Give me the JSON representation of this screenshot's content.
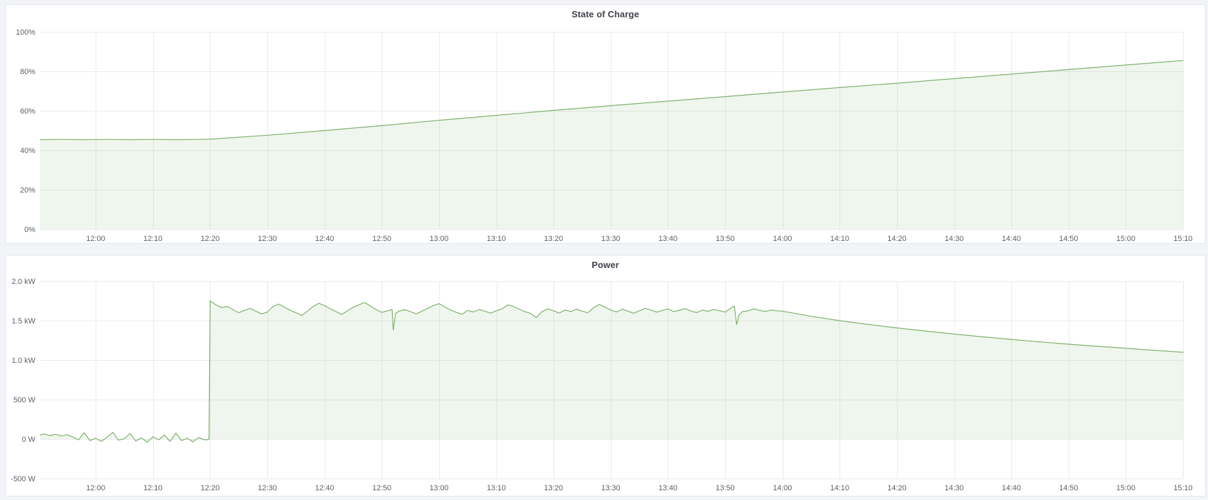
{
  "app": {
    "background": "#f2f4f8",
    "panel_background": "#ffffff",
    "panel_border": "#dfe4ec",
    "title_color": "#3f434b",
    "tick_color": "#5c6066",
    "grid_color": "#ebebeb",
    "accent_green": "#7eb26d"
  },
  "chart_data": [
    {
      "type": "area",
      "title": "State of Charge",
      "xlabel": "",
      "ylabel": "",
      "unit": "percent",
      "line_color": "#7eb26d",
      "fill_color": "rgba(126,178,109,0.12)",
      "grid": true,
      "legend": false,
      "x_range": [
        710.3,
        910
      ],
      "y_range": [
        0,
        100
      ],
      "fill_baseline": 0,
      "y_ticks": [
        [
          0,
          "0%"
        ],
        [
          20,
          "20%"
        ],
        [
          40,
          "40%"
        ],
        [
          60,
          "60%"
        ],
        [
          80,
          "80%"
        ],
        [
          100,
          "100%"
        ]
      ],
      "x_ticks": [
        [
          720,
          "12:00"
        ],
        [
          730,
          "12:10"
        ],
        [
          740,
          "12:20"
        ],
        [
          750,
          "12:30"
        ],
        [
          760,
          "12:40"
        ],
        [
          770,
          "12:50"
        ],
        [
          780,
          "13:00"
        ],
        [
          790,
          "13:10"
        ],
        [
          800,
          "13:20"
        ],
        [
          810,
          "13:30"
        ],
        [
          820,
          "13:40"
        ],
        [
          830,
          "13:50"
        ],
        [
          840,
          "14:00"
        ],
        [
          850,
          "14:10"
        ],
        [
          860,
          "14:20"
        ],
        [
          870,
          "14:30"
        ],
        [
          880,
          "14:40"
        ],
        [
          890,
          "14:50"
        ],
        [
          900,
          "15:00"
        ],
        [
          910,
          "15:10"
        ]
      ],
      "points": [
        [
          710.3,
          45.4
        ],
        [
          714,
          45.5
        ],
        [
          718,
          45.4
        ],
        [
          722,
          45.5
        ],
        [
          726,
          45.4
        ],
        [
          730,
          45.5
        ],
        [
          734,
          45.4
        ],
        [
          738,
          45.5
        ],
        [
          740,
          45.6
        ],
        [
          750,
          47.6
        ],
        [
          760,
          50.0
        ],
        [
          770,
          52.5
        ],
        [
          780,
          55.2
        ],
        [
          790,
          57.7
        ],
        [
          800,
          60.2
        ],
        [
          810,
          62.6
        ],
        [
          820,
          64.9
        ],
        [
          830,
          67.2
        ],
        [
          840,
          69.5
        ],
        [
          850,
          71.8
        ],
        [
          860,
          74.0
        ],
        [
          870,
          76.3
        ],
        [
          880,
          78.6
        ],
        [
          890,
          80.9
        ],
        [
          900,
          83.2
        ],
        [
          910,
          85.5
        ]
      ]
    },
    {
      "type": "area",
      "title": "Power",
      "xlabel": "",
      "ylabel": "",
      "unit": "watt",
      "line_color": "#7eb26d",
      "fill_color": "rgba(126,178,109,0.12)",
      "grid": true,
      "legend": false,
      "x_range": [
        710.3,
        910
      ],
      "y_range": [
        -500,
        2000
      ],
      "fill_baseline": 0,
      "y_ticks": [
        [
          -500,
          "-500 W"
        ],
        [
          0,
          "0 W"
        ],
        [
          500,
          "500 W"
        ],
        [
          1000,
          "1.0 kW"
        ],
        [
          1500,
          "1.5 kW"
        ],
        [
          2000,
          "2.0 kW"
        ]
      ],
      "x_ticks": [
        [
          720,
          "12:00"
        ],
        [
          730,
          "12:10"
        ],
        [
          740,
          "12:20"
        ],
        [
          750,
          "12:30"
        ],
        [
          760,
          "12:40"
        ],
        [
          770,
          "12:50"
        ],
        [
          780,
          "13:00"
        ],
        [
          790,
          "13:10"
        ],
        [
          800,
          "13:20"
        ],
        [
          810,
          "13:30"
        ],
        [
          820,
          "13:40"
        ],
        [
          830,
          "13:50"
        ],
        [
          840,
          "14:00"
        ],
        [
          850,
          "14:10"
        ],
        [
          860,
          "14:20"
        ],
        [
          870,
          "14:30"
        ],
        [
          880,
          "14:40"
        ],
        [
          890,
          "14:50"
        ],
        [
          900,
          "15:00"
        ],
        [
          910,
          "15:10"
        ]
      ],
      "points": [
        [
          710.3,
          50
        ],
        [
          711,
          65
        ],
        [
          712,
          45
        ],
        [
          713,
          60
        ],
        [
          714,
          40
        ],
        [
          715,
          55
        ],
        [
          716,
          25
        ],
        [
          717,
          -10
        ],
        [
          718,
          80
        ],
        [
          719,
          -20
        ],
        [
          720,
          10
        ],
        [
          721,
          -30
        ],
        [
          722,
          25
        ],
        [
          723,
          85
        ],
        [
          724,
          -15
        ],
        [
          725,
          5
        ],
        [
          726,
          70
        ],
        [
          727,
          -25
        ],
        [
          728,
          15
        ],
        [
          729,
          -40
        ],
        [
          730,
          30
        ],
        [
          731,
          -10
        ],
        [
          732,
          50
        ],
        [
          733,
          -30
        ],
        [
          734,
          75
        ],
        [
          735,
          -20
        ],
        [
          736,
          10
        ],
        [
          737,
          -35
        ],
        [
          738,
          20
        ],
        [
          739,
          -10
        ],
        [
          739.8,
          -5
        ],
        [
          740,
          1750
        ],
        [
          741,
          1700
        ],
        [
          742,
          1665
        ],
        [
          743,
          1680
        ],
        [
          744,
          1640
        ],
        [
          745,
          1600
        ],
        [
          746,
          1630
        ],
        [
          747,
          1655
        ],
        [
          748,
          1620
        ],
        [
          749,
          1585
        ],
        [
          750,
          1610
        ],
        [
          751,
          1680
        ],
        [
          752,
          1710
        ],
        [
          753,
          1670
        ],
        [
          754,
          1630
        ],
        [
          755,
          1600
        ],
        [
          756,
          1565
        ],
        [
          757,
          1620
        ],
        [
          758,
          1680
        ],
        [
          759,
          1720
        ],
        [
          760,
          1690
        ],
        [
          761,
          1650
        ],
        [
          762,
          1615
        ],
        [
          763,
          1580
        ],
        [
          764,
          1625
        ],
        [
          765,
          1670
        ],
        [
          766,
          1700
        ],
        [
          767,
          1730
        ],
        [
          768,
          1685
        ],
        [
          769,
          1640
        ],
        [
          770,
          1605
        ],
        [
          771,
          1625
        ],
        [
          771.8,
          1640
        ],
        [
          772,
          1380
        ],
        [
          772.4,
          1595
        ],
        [
          773,
          1620
        ],
        [
          774,
          1640
        ],
        [
          775,
          1615
        ],
        [
          776,
          1585
        ],
        [
          777,
          1620
        ],
        [
          778,
          1655
        ],
        [
          779,
          1690
        ],
        [
          780,
          1715
        ],
        [
          781,
          1675
        ],
        [
          782,
          1635
        ],
        [
          783,
          1605
        ],
        [
          784,
          1580
        ],
        [
          785,
          1630
        ],
        [
          786,
          1610
        ],
        [
          787,
          1640
        ],
        [
          788,
          1620
        ],
        [
          789,
          1595
        ],
        [
          790,
          1625
        ],
        [
          791,
          1650
        ],
        [
          792,
          1700
        ],
        [
          793,
          1680
        ],
        [
          794,
          1645
        ],
        [
          795,
          1615
        ],
        [
          796,
          1590
        ],
        [
          797,
          1540
        ],
        [
          798,
          1615
        ],
        [
          799,
          1650
        ],
        [
          800,
          1625
        ],
        [
          801,
          1595
        ],
        [
          802,
          1635
        ],
        [
          803,
          1615
        ],
        [
          804,
          1645
        ],
        [
          805,
          1620
        ],
        [
          806,
          1600
        ],
        [
          807,
          1665
        ],
        [
          808,
          1705
        ],
        [
          809,
          1670
        ],
        [
          810,
          1635
        ],
        [
          811,
          1610
        ],
        [
          812,
          1645
        ],
        [
          813,
          1620
        ],
        [
          814,
          1595
        ],
        [
          815,
          1625
        ],
        [
          816,
          1655
        ],
        [
          817,
          1635
        ],
        [
          818,
          1608
        ],
        [
          819,
          1628
        ],
        [
          820,
          1648
        ],
        [
          821,
          1615
        ],
        [
          822,
          1632
        ],
        [
          823,
          1652
        ],
        [
          824,
          1622
        ],
        [
          825,
          1602
        ],
        [
          826,
          1633
        ],
        [
          827,
          1618
        ],
        [
          828,
          1642
        ],
        [
          829,
          1626
        ],
        [
          830,
          1608
        ],
        [
          831,
          1660
        ],
        [
          831.6,
          1685
        ],
        [
          832,
          1450
        ],
        [
          832.4,
          1570
        ],
        [
          833,
          1615
        ],
        [
          834,
          1625
        ],
        [
          835,
          1650
        ],
        [
          836,
          1630
        ],
        [
          837,
          1615
        ],
        [
          838,
          1635
        ],
        [
          839,
          1625
        ],
        [
          840,
          1620
        ],
        [
          845,
          1555
        ],
        [
          850,
          1500
        ],
        [
          855,
          1452
        ],
        [
          860,
          1408
        ],
        [
          865,
          1368
        ],
        [
          870,
          1330
        ],
        [
          875,
          1295
        ],
        [
          880,
          1262
        ],
        [
          885,
          1231
        ],
        [
          890,
          1202
        ],
        [
          895,
          1175
        ],
        [
          900,
          1150
        ],
        [
          905,
          1124
        ],
        [
          910,
          1100
        ]
      ]
    }
  ]
}
